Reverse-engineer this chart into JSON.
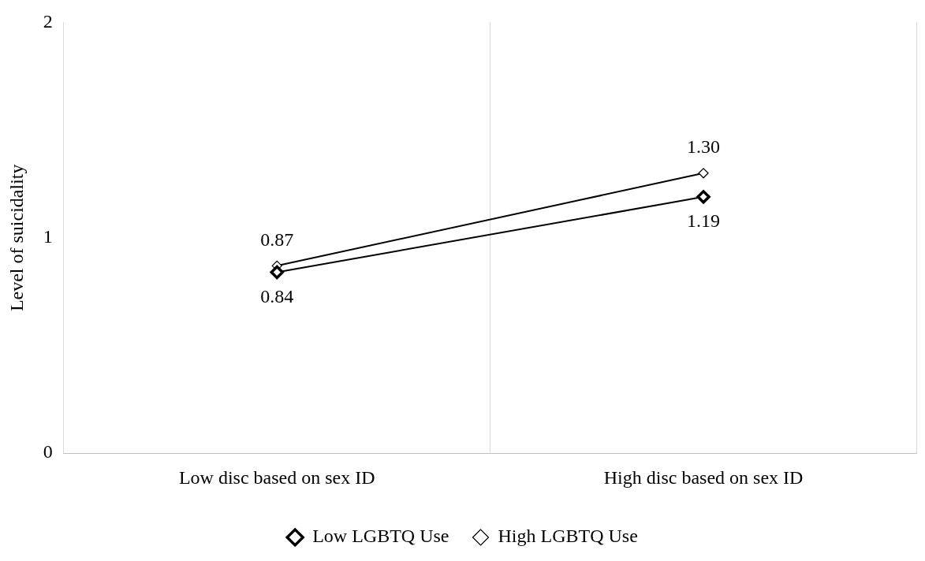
{
  "chart_data": {
    "type": "line",
    "ylabel": "Level of suicidality",
    "categories": [
      "Low disc based on sex ID",
      "High disc based on sex ID"
    ],
    "series": [
      {
        "name": "Low LGBTQ Use",
        "color": "#000000",
        "values": [
          0.84,
          1.19
        ],
        "value_labels": [
          "0.84",
          "1.19"
        ]
      },
      {
        "name": "High LGBTQ Use",
        "color": "#000000",
        "values": [
          0.87,
          1.3
        ],
        "value_labels": [
          "0.87",
          "1.30"
        ]
      }
    ],
    "ylim": [
      0,
      2
    ],
    "yticks": [
      0,
      1,
      2
    ],
    "grid": "x",
    "legend": "bottom",
    "marker": "diamond",
    "line_style": "solid"
  }
}
